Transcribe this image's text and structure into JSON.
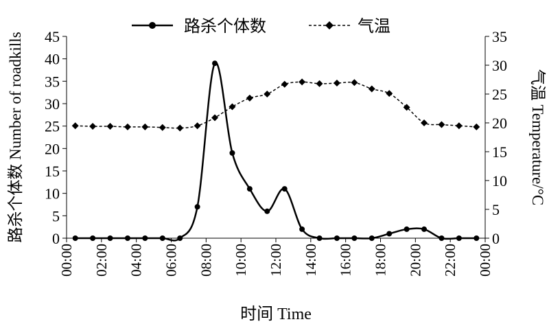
{
  "chart_data": {
    "type": "line",
    "xlabel": "时间 Time",
    "ylabel_left": "路杀个体数 Number of roadkills",
    "ylabel_right": "气温 Temperature/°C",
    "xlim": [
      0,
      24
    ],
    "ylim_left": [
      0,
      45
    ],
    "ylim_right": [
      0,
      35
    ],
    "x_ticks": [
      "00:00",
      "02:00",
      "04:00",
      "06:00",
      "08:00",
      "10:00",
      "12:00",
      "14:00",
      "16:00",
      "18:00",
      "20:00",
      "22:00",
      "00:00"
    ],
    "y_ticks_left": [
      "0",
      "5",
      "10",
      "15",
      "20",
      "25",
      "30",
      "35",
      "40",
      "45"
    ],
    "y_ticks_right": [
      "0",
      "5",
      "10",
      "15",
      "20",
      "25",
      "30",
      "35"
    ],
    "legend_position": "top-center",
    "grid": false,
    "x": [
      0.5,
      1.5,
      2.5,
      3.5,
      4.5,
      5.5,
      6.5,
      7.5,
      8.5,
      9.5,
      10.5,
      11.5,
      12.5,
      13.5,
      14.5,
      15.5,
      16.5,
      17.5,
      18.5,
      19.5,
      20.5,
      21.5,
      22.5,
      23.5
    ],
    "series": [
      {
        "name": "路杀个体数",
        "axis": "left",
        "marker": "circle",
        "line": "solid",
        "values": [
          0,
          0,
          0,
          0,
          0,
          0,
          0,
          7,
          39,
          19,
          11,
          6,
          11,
          2,
          0,
          0,
          0,
          0,
          1,
          2,
          2,
          0,
          0,
          0
        ]
      },
      {
        "name": "气温",
        "axis": "right",
        "marker": "diamond",
        "line": "dashed",
        "values": [
          19.5,
          19.4,
          19.4,
          19.3,
          19.3,
          19.2,
          19.1,
          19.5,
          20.9,
          22.8,
          24.3,
          25.0,
          26.7,
          27.1,
          26.8,
          26.9,
          27.0,
          25.9,
          25.1,
          22.7,
          20.0,
          19.7,
          19.5,
          19.3
        ]
      }
    ]
  }
}
